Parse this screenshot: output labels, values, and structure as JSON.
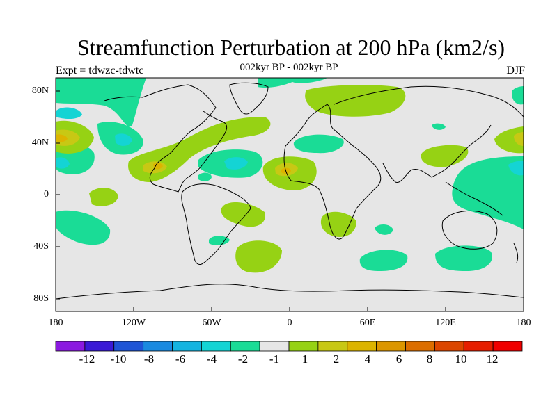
{
  "title": "Streamfunction Perturbation at 200 hPa (km2/s)",
  "subtitle": "002kyr BP - 002kyr BP",
  "left_label": "Expt = tdwzc-tdwtc",
  "right_label": "DJF",
  "lat_ticks": [
    "80N",
    "40N",
    "0",
    "40S",
    "80S"
  ],
  "lon_ticks": [
    "180",
    "120W",
    "60W",
    "0",
    "60E",
    "120E",
    "180"
  ],
  "colorbar": {
    "colors": [
      "#8b1ae0",
      "#3a1ad6",
      "#1f55d6",
      "#1a8ae0",
      "#14b4e0",
      "#14d4d4",
      "#1adc96",
      "#e6e6e6",
      "#96d214",
      "#c8c814",
      "#dcb400",
      "#dc9600",
      "#dc6e00",
      "#dc4600",
      "#e61e00",
      "#f00000"
    ],
    "labels": [
      "-12",
      "-10",
      "-8",
      "-6",
      "-4",
      "-2",
      "-1",
      "1",
      "2",
      "4",
      "6",
      "8",
      "10",
      "12"
    ]
  },
  "map_colors": {
    "background": "#e6e6e6",
    "neg_light": "#1adc96",
    "neg_mid": "#14d4d4",
    "pos_light": "#96d214",
    "pos_mid": "#c8c814",
    "pos_strong": "#dcb400",
    "pos_orange": "#dc9600"
  }
}
